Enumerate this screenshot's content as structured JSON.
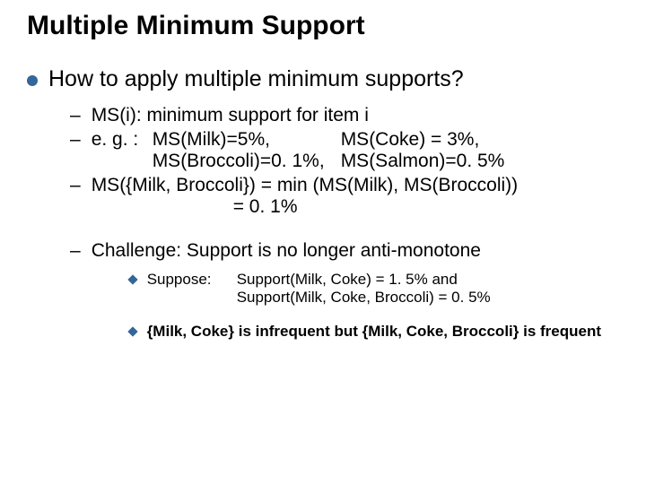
{
  "title": "Multiple Minimum Support",
  "main_question": "How to apply multiple minimum supports?",
  "bullets": {
    "b1": "MS(i): minimum support for item i",
    "eg_label": "e. g. :",
    "eg_r1c1": "MS(Milk)=5%,",
    "eg_r1c2": "MS(Coke) = 3%,",
    "eg_r2c1": "MS(Broccoli)=0. 1%,",
    "eg_r2c2": "MS(Salmon)=0. 5%",
    "b3_line1": "MS({Milk, Broccoli}) = min (MS(Milk), MS(Broccoli))",
    "b3_line2": "= 0. 1%",
    "challenge": "Challenge: Support is no longer anti-monotone",
    "suppose_label": "Suppose:",
    "suppose_l1": "Support(Milk, Coke) = 1. 5% and",
    "suppose_l2": "Support(Milk, Coke, Broccoli) = 0. 5%",
    "conclusion": "{Milk, Coke} is infrequent but {Milk, Coke, Broccoli} is frequent"
  },
  "colors": {
    "bullet": "#336699",
    "text": "#000000",
    "background": "#ffffff"
  },
  "fonts": {
    "title_size": 30,
    "main_size": 25,
    "sub_size": 21,
    "deep_size": 17
  }
}
